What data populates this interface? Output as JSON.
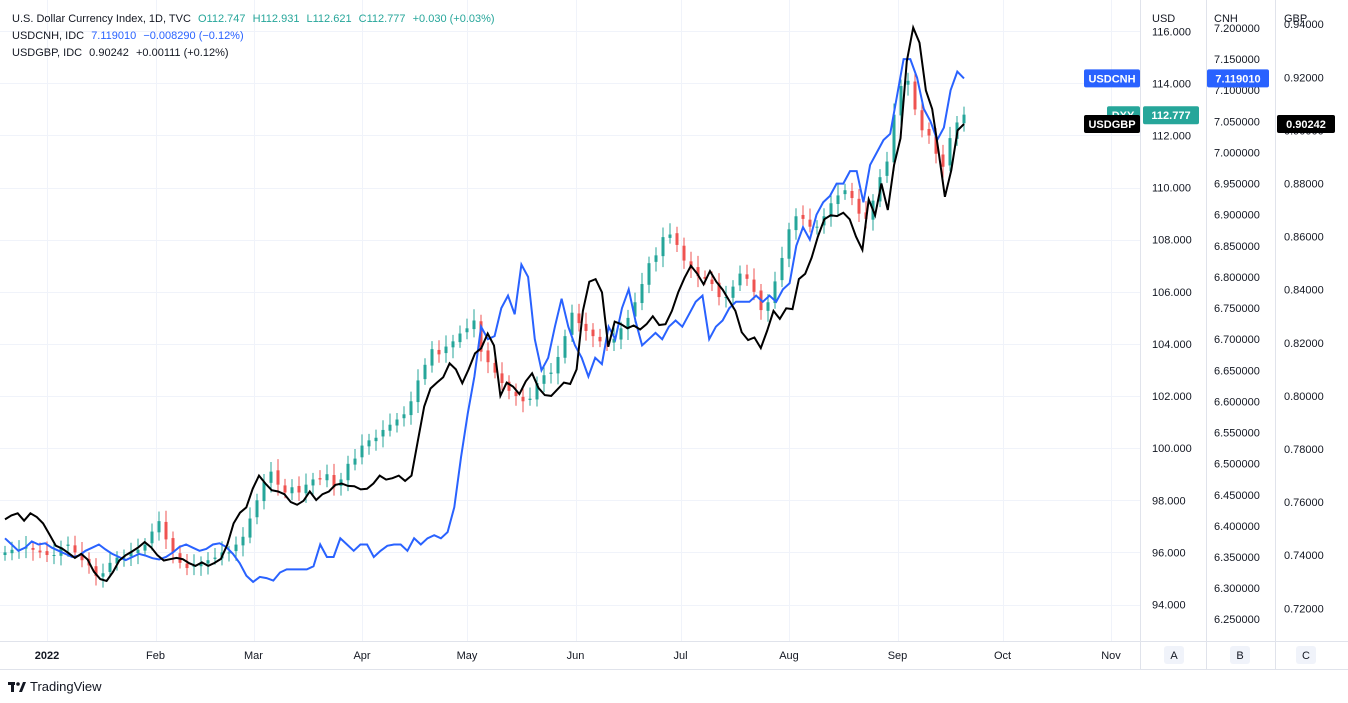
{
  "legend": {
    "dxy": {
      "name": "U.S. Dollar Currency Index, 1D, TVC",
      "o": "O112.747",
      "h": "H112.931",
      "l": "L112.621",
      "c": "C112.777",
      "chg": "+0.030 (+0.03%)"
    },
    "cnh": {
      "name": "USDCNH, IDC",
      "last": "7.119010",
      "chg": "−0.008290 (−0.12%)"
    },
    "gbp": {
      "name": "USDGBP, IDC",
      "last": "0.90242",
      "chg": "+0.00111 (+0.12%)"
    }
  },
  "footer": {
    "brand": "TradingView"
  },
  "colors": {
    "up": "#26a69a",
    "down": "#ef5350",
    "cnh": "#2962ff",
    "gbp": "#000000",
    "grid": "#f0f3fa",
    "axis": "#e0e3eb"
  },
  "chart_data": {
    "type": "line",
    "x_tick_labels": [
      "2022",
      "Feb",
      "Mar",
      "Apr",
      "May",
      "Jun",
      "Jul",
      "Aug",
      "Sep",
      "Oct",
      "Nov"
    ],
    "axes": {
      "usd": {
        "title": "USD",
        "ylim": [
          92.6,
          117.2
        ],
        "ticks": [
          "94.000",
          "96.000",
          "98.000",
          "100.000",
          "102.000",
          "104.000",
          "106.000",
          "108.000",
          "110.000",
          "112.000",
          "114.000",
          "116.000"
        ]
      },
      "cnh": {
        "title": "CNH",
        "ylim": [
          6.215,
          7.245
        ],
        "ticks": [
          "6.250000",
          "6.300000",
          "6.350000",
          "6.400000",
          "6.450000",
          "6.500000",
          "6.550000",
          "6.600000",
          "6.650000",
          "6.700000",
          "6.750000",
          "6.800000",
          "6.850000",
          "6.900000",
          "6.950000",
          "7.000000",
          "7.050000",
          "7.100000",
          "7.150000",
          "7.200000"
        ]
      },
      "gbp": {
        "title": "GBP",
        "ylim": [
          0.7077,
          0.9491
        ],
        "ticks": [
          "0.72000",
          "0.74000",
          "0.76000",
          "0.78000",
          "0.80000",
          "0.82000",
          "0.84000",
          "0.86000",
          "0.88000",
          "0.90000",
          "0.92000",
          "0.94000"
        ]
      }
    },
    "axis_buttons": [
      "A",
      "B",
      "C"
    ],
    "last_value_tags": [
      {
        "label": "USDCNH",
        "value": "7.119010",
        "series": "cnh"
      },
      {
        "label": "DXY",
        "value": "112.777",
        "series": "dxy"
      },
      {
        "label": "USDGBP",
        "value": "0.90242",
        "series": "gbp"
      }
    ],
    "series": [
      {
        "name": "DXY",
        "kind": "candlestick",
        "axis": "usd",
        "x_start": "2021-12-20",
        "step_days": 2,
        "close": [
          96.0,
          96.1,
          96.1,
          96.2,
          96.1,
          96.0,
          95.9,
          95.9,
          96.2,
          96.3,
          96.0,
          95.7,
          95.5,
          95.1,
          95.2,
          95.6,
          95.8,
          95.8,
          96.0,
          96.1,
          96.3,
          96.8,
          97.2,
          96.5,
          96.0,
          95.6,
          95.4,
          95.5,
          95.6,
          95.7,
          95.8,
          96.0,
          96.0,
          96.3,
          96.6,
          97.3,
          98.0,
          98.7,
          99.1,
          98.6,
          98.3,
          98.5,
          98.3,
          98.6,
          98.8,
          98.8,
          99.0,
          98.5,
          98.8,
          99.4,
          99.6,
          100.1,
          100.3,
          100.4,
          100.7,
          100.9,
          101.1,
          101.3,
          101.8,
          102.6,
          103.2,
          103.8,
          103.6,
          103.9,
          104.1,
          104.4,
          104.6,
          104.9,
          103.7,
          103.3,
          102.9,
          102.5,
          102.2,
          102.0,
          101.8,
          101.9,
          102.5,
          102.8,
          102.9,
          103.5,
          104.3,
          105.2,
          104.8,
          104.5,
          104.3,
          104.1,
          104.0,
          104.2,
          104.6,
          105.0,
          105.6,
          106.3,
          107.1,
          107.4,
          108.1,
          108.2,
          107.8,
          107.2,
          106.9,
          106.6,
          106.5,
          106.3,
          105.8,
          105.8,
          106.2,
          106.7,
          106.5,
          106.0,
          105.3,
          105.6,
          106.4,
          107.3,
          108.4,
          108.9,
          108.8,
          108.5,
          108.5,
          108.9,
          109.4,
          109.7,
          109.9,
          109.6,
          109.0,
          108.8,
          109.5,
          110.4,
          111.0,
          112.8,
          113.9,
          114.1,
          113.0,
          112.2,
          112.0,
          111.3,
          110.8,
          111.9,
          112.5,
          112.8
        ],
        "last_close": 112.777
      },
      {
        "name": "USDCNH",
        "kind": "line",
        "axis": "cnh",
        "color": "#2962ff",
        "last": 7.11901,
        "values": [
          6.38,
          6.37,
          6.36,
          6.365,
          6.375,
          6.37,
          6.372,
          6.365,
          6.36,
          6.355,
          6.35,
          6.352,
          6.36,
          6.365,
          6.37,
          6.362,
          6.355,
          6.35,
          6.345,
          6.35,
          6.355,
          6.352,
          6.348,
          6.346,
          6.35,
          6.357,
          6.366,
          6.37,
          6.365,
          6.36,
          6.363,
          6.37,
          6.372,
          6.366,
          6.355,
          6.34,
          6.32,
          6.31,
          6.318,
          6.316,
          6.312,
          6.325,
          6.33,
          6.33,
          6.33,
          6.33,
          6.335,
          6.37,
          6.35,
          6.35,
          6.38,
          6.37,
          6.36,
          6.37,
          6.37,
          6.35,
          6.36,
          6.368,
          6.37,
          6.37,
          6.36,
          6.38,
          6.37,
          6.38,
          6.385,
          6.38,
          6.39,
          6.43,
          6.51,
          6.58,
          6.64,
          6.72,
          6.7,
          6.705,
          6.75,
          6.77,
          6.74,
          6.82,
          6.8,
          6.7,
          6.65,
          6.67,
          6.72,
          6.765,
          6.72,
          6.69,
          6.67,
          6.64,
          6.67,
          6.66,
          6.72,
          6.7,
          6.75,
          6.78,
          6.73,
          6.69,
          6.7,
          6.71,
          6.7,
          6.72,
          6.73,
          6.72,
          6.74,
          6.76,
          6.77,
          6.7,
          6.72,
          6.73,
          6.75,
          6.76,
          6.76,
          6.76,
          6.77,
          6.76,
          6.77,
          6.76,
          6.78,
          6.79,
          6.85,
          6.88,
          6.86,
          6.9,
          6.92,
          6.93,
          6.95,
          6.95,
          6.97,
          6.97,
          6.92,
          6.98,
          7.0,
          7.02,
          7.03,
          7.09,
          7.15,
          7.15,
          7.12,
          7.07,
          7.05,
          7.02,
          7.04,
          7.1,
          7.13,
          7.119
        ]
      },
      {
        "name": "USDGBP",
        "kind": "line",
        "axis": "gbp",
        "color": "#000000",
        "last": 0.90242,
        "values": [
          0.7535,
          0.755,
          0.7558,
          0.753,
          0.7558,
          0.7544,
          0.752,
          0.7478,
          0.7436,
          0.7425,
          0.7408,
          0.739,
          0.7405,
          0.7384,
          0.7338,
          0.731,
          0.7303,
          0.7337,
          0.738,
          0.74,
          0.7414,
          0.743,
          0.745,
          0.743,
          0.74,
          0.738,
          0.7385,
          0.739,
          0.7385,
          0.737,
          0.736,
          0.7373,
          0.736,
          0.7371,
          0.7386,
          0.744,
          0.752,
          0.756,
          0.758,
          0.765,
          0.77,
          0.767,
          0.7645,
          0.764,
          0.763,
          0.76,
          0.759,
          0.7605,
          0.764,
          0.7608,
          0.763,
          0.764,
          0.7665,
          0.767,
          0.7661,
          0.766,
          0.7648,
          0.765,
          0.767,
          0.77,
          0.7685,
          0.769,
          0.77,
          0.768,
          0.77,
          0.783,
          0.796,
          0.8028,
          0.805,
          0.807,
          0.8123,
          0.81,
          0.8048,
          0.81,
          0.816,
          0.818,
          0.8235,
          0.819,
          0.8,
          0.805,
          0.8035,
          0.8007,
          0.8055,
          0.8085,
          0.803,
          0.8003,
          0.8,
          0.8025,
          0.805,
          0.8045,
          0.81,
          0.832,
          0.843,
          0.844,
          0.839,
          0.8185,
          0.828,
          0.827,
          0.8255,
          0.8265,
          0.825,
          0.827,
          0.83,
          0.8267,
          0.827,
          0.832,
          0.839,
          0.8445,
          0.849,
          0.846,
          0.842,
          0.847,
          0.843,
          0.84,
          0.836,
          0.832,
          0.824,
          0.821,
          0.822,
          0.818,
          0.8245,
          0.832,
          0.829,
          0.833,
          0.8327,
          0.844,
          0.846,
          0.852,
          0.86,
          0.8665,
          0.868,
          0.8677,
          0.869,
          0.8665,
          0.86,
          0.855,
          0.874,
          0.868,
          0.88,
          0.87,
          0.887,
          0.897,
          0.926,
          0.9387,
          0.933,
          0.915,
          0.908,
          0.892,
          0.875,
          0.885,
          0.9,
          0.9024
        ]
      }
    ]
  }
}
